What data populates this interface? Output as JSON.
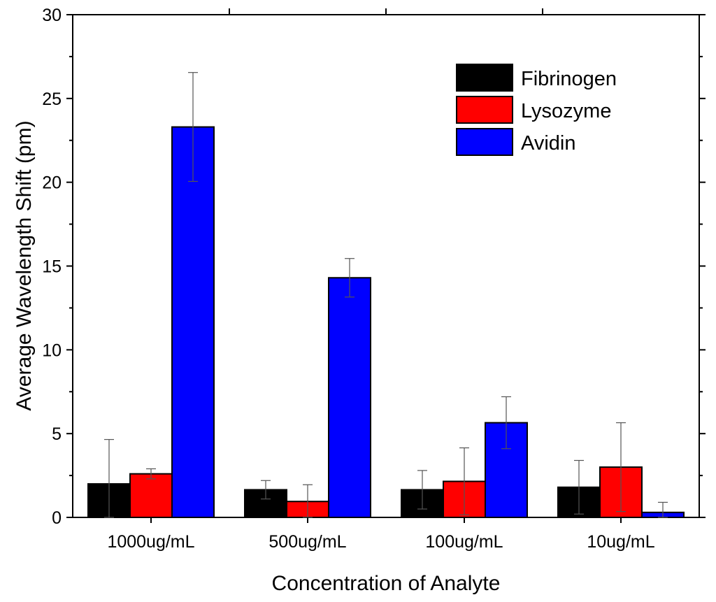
{
  "chart_data": {
    "type": "bar",
    "title": "",
    "xlabel": "Concentration of Analyte",
    "ylabel": "Average Wavelength Shift (pm)",
    "ylim": [
      0,
      30
    ],
    "yticks": [
      0,
      5,
      10,
      15,
      20,
      25,
      30
    ],
    "grid": false,
    "legend_position": "top-right",
    "categories": [
      "1000ug/mL",
      "500ug/mL",
      "100ug/mL",
      "10ug/mL"
    ],
    "series": [
      {
        "name": "Fibrinogen",
        "color": "#000000",
        "values": [
          2.0,
          1.65,
          1.65,
          1.8
        ],
        "errors": [
          2.65,
          0.55,
          1.15,
          1.6
        ]
      },
      {
        "name": "Lysozyme",
        "color": "#ff0000",
        "values": [
          2.6,
          0.95,
          2.15,
          3.0
        ],
        "errors": [
          0.3,
          1.0,
          2.0,
          2.65
        ]
      },
      {
        "name": "Avidin",
        "color": "#0000ff",
        "values": [
          23.3,
          14.3,
          5.65,
          0.3
        ],
        "errors": [
          3.25,
          1.15,
          1.55,
          0.6
        ]
      }
    ]
  }
}
